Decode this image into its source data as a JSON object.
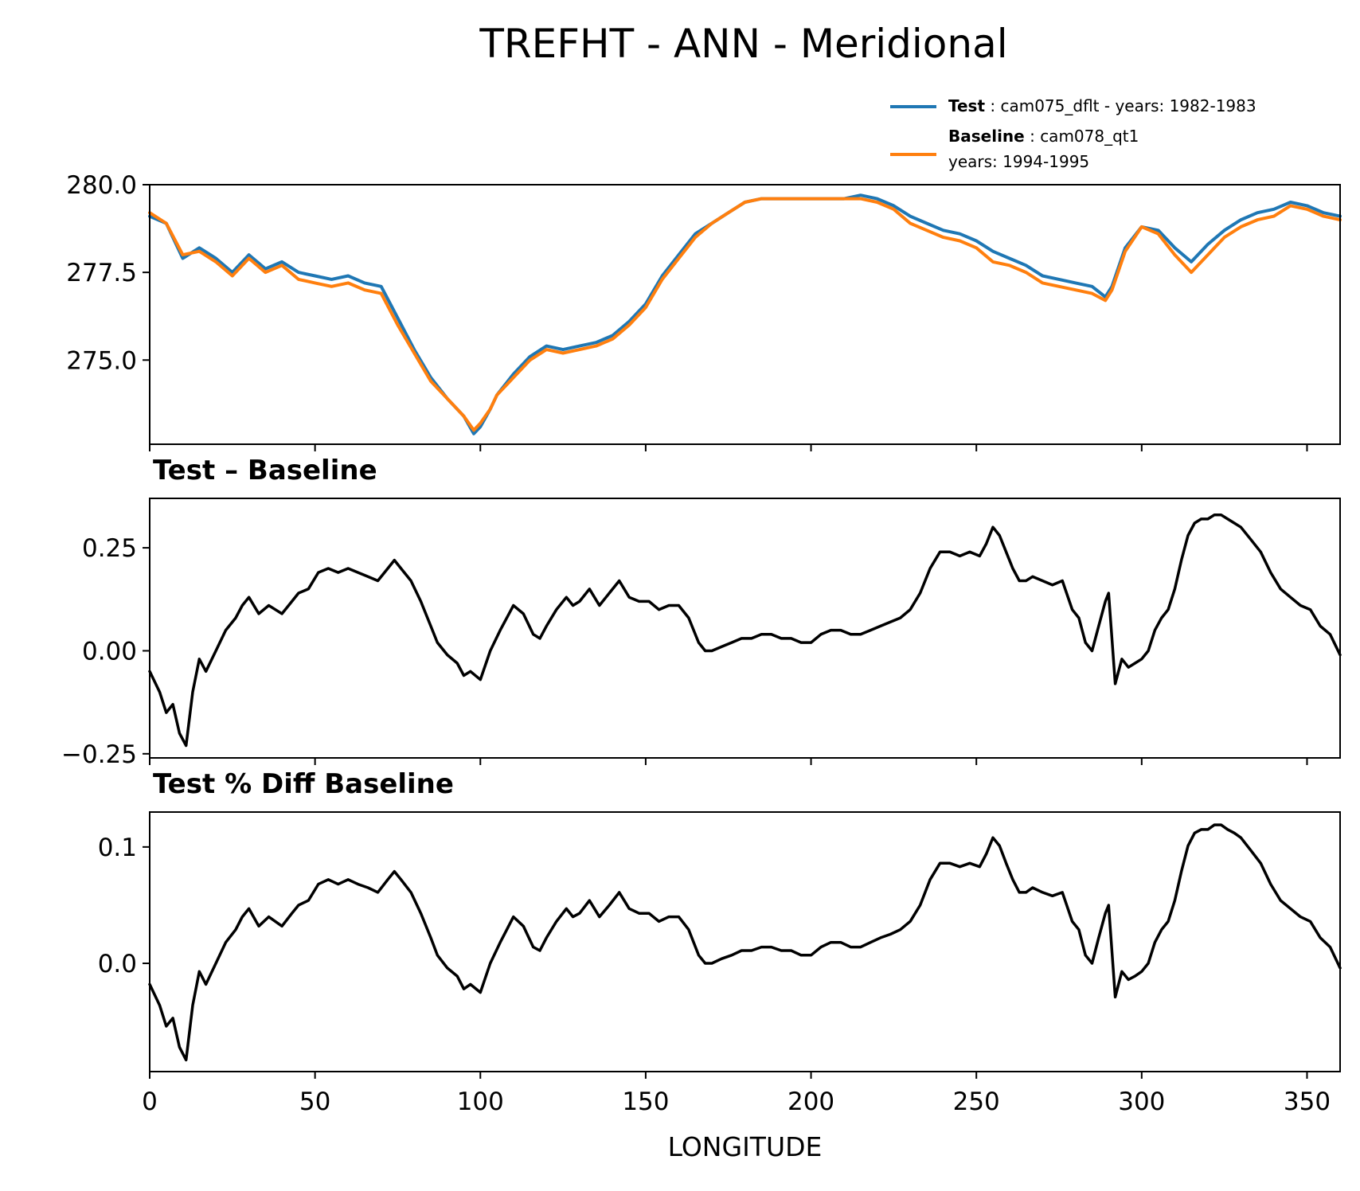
{
  "figure_title": "TREFHT - ANN - Meridional",
  "chart_data": [
    {
      "type": "line",
      "panel": "top",
      "title": "",
      "xlabel": "",
      "ylabel": "",
      "xlim": [
        0,
        360
      ],
      "ylim": [
        272.6,
        280.0
      ],
      "yticks": [
        275.0,
        277.5,
        280.0
      ],
      "ytick_labels": [
        "275.0",
        "277.5",
        "280.0"
      ],
      "xticks": [
        0,
        50,
        100,
        150,
        200,
        250,
        300,
        350
      ],
      "legend": {
        "placement": "top-right",
        "entries": [
          {
            "series": 0,
            "bold": "Test",
            "lines": [
              ": cam075_dflt - years: 1982-1983"
            ]
          },
          {
            "series": 1,
            "bold": "Baseline",
            "lines": [
              ": cam078_qt1",
              "years: 1994-1995"
            ]
          }
        ]
      },
      "x": [
        0,
        5,
        10,
        15,
        20,
        25,
        30,
        35,
        40,
        45,
        50,
        55,
        60,
        65,
        70,
        75,
        80,
        85,
        90,
        95,
        98,
        100,
        103,
        105,
        110,
        115,
        120,
        125,
        130,
        135,
        140,
        145,
        150,
        155,
        160,
        165,
        170,
        175,
        180,
        185,
        190,
        195,
        200,
        205,
        210,
        215,
        220,
        225,
        230,
        235,
        240,
        245,
        250,
        255,
        260,
        265,
        270,
        275,
        280,
        285,
        289,
        291,
        295,
        300,
        305,
        310,
        315,
        320,
        325,
        330,
        335,
        340,
        345,
        350,
        355,
        360
      ],
      "series": [
        {
          "name": "Test",
          "color": "#1f77b4",
          "values": [
            279.1,
            278.9,
            277.9,
            278.2,
            277.9,
            277.5,
            278.0,
            277.6,
            277.8,
            277.5,
            277.4,
            277.3,
            277.4,
            277.2,
            277.1,
            276.2,
            275.3,
            274.5,
            273.9,
            273.4,
            272.9,
            273.1,
            273.6,
            274.0,
            274.6,
            275.1,
            275.4,
            275.3,
            275.4,
            275.5,
            275.7,
            276.1,
            276.6,
            277.4,
            278.0,
            278.6,
            278.9,
            279.2,
            279.5,
            279.6,
            279.6,
            279.6,
            279.6,
            279.6,
            279.6,
            279.7,
            279.6,
            279.4,
            279.1,
            278.9,
            278.7,
            278.6,
            278.4,
            278.1,
            277.9,
            277.7,
            277.4,
            277.3,
            277.2,
            277.1,
            276.8,
            277.1,
            278.2,
            278.8,
            278.7,
            278.2,
            277.8,
            278.3,
            278.7,
            279.0,
            279.2,
            279.3,
            279.5,
            279.4,
            279.2,
            279.1
          ]
        },
        {
          "name": "Baseline",
          "color": "#ff7f0e",
          "values": [
            279.2,
            278.9,
            278.0,
            278.1,
            277.8,
            277.4,
            277.9,
            277.5,
            277.7,
            277.3,
            277.2,
            277.1,
            277.2,
            277.0,
            276.9,
            276.0,
            275.2,
            274.4,
            273.9,
            273.4,
            273.0,
            273.2,
            273.6,
            274.0,
            274.5,
            275.0,
            275.3,
            275.2,
            275.3,
            275.4,
            275.6,
            276.0,
            276.5,
            277.3,
            277.9,
            278.5,
            278.9,
            279.2,
            279.5,
            279.6,
            279.6,
            279.6,
            279.6,
            279.6,
            279.6,
            279.6,
            279.5,
            279.3,
            278.9,
            278.7,
            278.5,
            278.4,
            278.2,
            277.8,
            277.7,
            277.5,
            277.2,
            277.1,
            277.0,
            276.9,
            276.7,
            277.0,
            278.1,
            278.8,
            278.6,
            278.0,
            277.5,
            278.0,
            278.5,
            278.8,
            279.0,
            279.1,
            279.4,
            279.3,
            279.1,
            279.0
          ]
        }
      ]
    },
    {
      "type": "line",
      "panel": "middle",
      "title": "Test – Baseline",
      "xlabel": "",
      "ylabel": "",
      "xlim": [
        0,
        360
      ],
      "ylim": [
        -0.26,
        0.37
      ],
      "yticks": [
        -0.25,
        0.0,
        0.25
      ],
      "ytick_labels": [
        "−0.25",
        "0.00",
        "0.25"
      ],
      "xticks": [
        0,
        50,
        100,
        150,
        200,
        250,
        300,
        350
      ],
      "x": [
        0,
        3,
        5,
        7,
        9,
        11,
        13,
        15,
        17,
        20,
        23,
        26,
        28,
        30,
        33,
        36,
        38,
        40,
        43,
        45,
        48,
        51,
        54,
        57,
        60,
        63,
        66,
        69,
        72,
        74,
        76,
        79,
        82,
        85,
        87,
        90,
        93,
        95,
        97,
        100,
        103,
        106,
        108,
        110,
        113,
        116,
        118,
        120,
        123,
        126,
        128,
        130,
        133,
        136,
        139,
        142,
        145,
        148,
        151,
        154,
        157,
        160,
        163,
        166,
        168,
        170,
        173,
        176,
        179,
        182,
        185,
        188,
        191,
        194,
        197,
        200,
        203,
        206,
        209,
        212,
        215,
        218,
        221,
        224,
        227,
        230,
        233,
        236,
        239,
        242,
        245,
        248,
        251,
        253,
        255,
        257,
        259,
        261,
        263,
        265,
        267,
        270,
        273,
        276,
        279,
        281,
        283,
        285,
        287,
        289,
        290,
        292,
        294,
        296,
        298,
        300,
        302,
        304,
        306,
        308,
        310,
        312,
        314,
        316,
        318,
        320,
        322,
        324,
        326,
        328,
        330,
        333,
        336,
        339,
        342,
        345,
        348,
        351,
        354,
        357,
        360
      ],
      "series": [
        {
          "name": "",
          "color": "#000000",
          "values": [
            -0.05,
            -0.1,
            -0.15,
            -0.13,
            -0.2,
            -0.23,
            -0.1,
            -0.02,
            -0.05,
            0.0,
            0.05,
            0.08,
            0.11,
            0.13,
            0.09,
            0.11,
            0.1,
            0.09,
            0.12,
            0.14,
            0.15,
            0.19,
            0.2,
            0.19,
            0.2,
            0.19,
            0.18,
            0.17,
            0.2,
            0.22,
            0.2,
            0.17,
            0.12,
            0.06,
            0.02,
            -0.01,
            -0.03,
            -0.06,
            -0.05,
            -0.07,
            0.0,
            0.05,
            0.08,
            0.11,
            0.09,
            0.04,
            0.03,
            0.06,
            0.1,
            0.13,
            0.11,
            0.12,
            0.15,
            0.11,
            0.14,
            0.17,
            0.13,
            0.12,
            0.12,
            0.1,
            0.11,
            0.11,
            0.08,
            0.02,
            0.0,
            0.0,
            0.01,
            0.02,
            0.03,
            0.03,
            0.04,
            0.04,
            0.03,
            0.03,
            0.02,
            0.02,
            0.04,
            0.05,
            0.05,
            0.04,
            0.04,
            0.05,
            0.06,
            0.07,
            0.08,
            0.1,
            0.14,
            0.2,
            0.24,
            0.24,
            0.23,
            0.24,
            0.23,
            0.26,
            0.3,
            0.28,
            0.24,
            0.2,
            0.17,
            0.17,
            0.18,
            0.17,
            0.16,
            0.17,
            0.1,
            0.08,
            0.02,
            0.0,
            0.06,
            0.12,
            0.14,
            -0.08,
            -0.02,
            -0.04,
            -0.03,
            -0.02,
            0.0,
            0.05,
            0.08,
            0.1,
            0.15,
            0.22,
            0.28,
            0.31,
            0.32,
            0.32,
            0.33,
            0.33,
            0.32,
            0.31,
            0.3,
            0.27,
            0.24,
            0.19,
            0.15,
            0.13,
            0.11,
            0.1,
            0.06,
            0.04,
            -0.01
          ]
        }
      ]
    },
    {
      "type": "line",
      "panel": "bottom",
      "title": "Test % Diff Baseline",
      "xlabel": "LONGITUDE",
      "ylabel": "",
      "xlim": [
        0,
        360
      ],
      "ylim": [
        -0.093,
        0.13
      ],
      "yticks": [
        0.0,
        0.1
      ],
      "ytick_labels": [
        "0.0",
        "0.1"
      ],
      "xticks": [
        0,
        50,
        100,
        150,
        200,
        250,
        300,
        350
      ],
      "xtick_labels": [
        "0",
        "50",
        "100",
        "150",
        "200",
        "250",
        "300",
        "350"
      ],
      "x": [
        0,
        3,
        5,
        7,
        9,
        11,
        13,
        15,
        17,
        20,
        23,
        26,
        28,
        30,
        33,
        36,
        38,
        40,
        43,
        45,
        48,
        51,
        54,
        57,
        60,
        63,
        66,
        69,
        72,
        74,
        76,
        79,
        82,
        85,
        87,
        90,
        93,
        95,
        97,
        100,
        103,
        106,
        108,
        110,
        113,
        116,
        118,
        120,
        123,
        126,
        128,
        130,
        133,
        136,
        139,
        142,
        145,
        148,
        151,
        154,
        157,
        160,
        163,
        166,
        168,
        170,
        173,
        176,
        179,
        182,
        185,
        188,
        191,
        194,
        197,
        200,
        203,
        206,
        209,
        212,
        215,
        218,
        221,
        224,
        227,
        230,
        233,
        236,
        239,
        242,
        245,
        248,
        251,
        253,
        255,
        257,
        259,
        261,
        263,
        265,
        267,
        270,
        273,
        276,
        279,
        281,
        283,
        285,
        287,
        289,
        290,
        292,
        294,
        296,
        298,
        300,
        302,
        304,
        306,
        308,
        310,
        312,
        314,
        316,
        318,
        320,
        322,
        324,
        326,
        328,
        330,
        333,
        336,
        339,
        342,
        345,
        348,
        351,
        354,
        357,
        360
      ],
      "series": [
        {
          "name": "",
          "color": "#000000",
          "values": [
            -0.018,
            -0.036,
            -0.054,
            -0.047,
            -0.072,
            -0.083,
            -0.036,
            -0.007,
            -0.018,
            0.0,
            0.018,
            0.029,
            0.04,
            0.047,
            0.032,
            0.04,
            0.036,
            0.032,
            0.043,
            0.05,
            0.054,
            0.068,
            0.072,
            0.068,
            0.072,
            0.068,
            0.065,
            0.061,
            0.072,
            0.079,
            0.072,
            0.061,
            0.043,
            0.022,
            0.007,
            -0.004,
            -0.011,
            -0.022,
            -0.018,
            -0.025,
            0.0,
            0.018,
            0.029,
            0.04,
            0.032,
            0.014,
            0.011,
            0.022,
            0.036,
            0.047,
            0.04,
            0.043,
            0.054,
            0.04,
            0.05,
            0.061,
            0.047,
            0.043,
            0.043,
            0.036,
            0.04,
            0.04,
            0.029,
            0.007,
            0.0,
            0.0,
            0.004,
            0.007,
            0.011,
            0.011,
            0.014,
            0.014,
            0.011,
            0.011,
            0.007,
            0.007,
            0.014,
            0.018,
            0.018,
            0.014,
            0.014,
            0.018,
            0.022,
            0.025,
            0.029,
            0.036,
            0.05,
            0.072,
            0.086,
            0.086,
            0.083,
            0.086,
            0.083,
            0.094,
            0.108,
            0.101,
            0.086,
            0.072,
            0.061,
            0.061,
            0.065,
            0.061,
            0.058,
            0.061,
            0.036,
            0.029,
            0.007,
            0.0,
            0.022,
            0.043,
            0.05,
            -0.029,
            -0.007,
            -0.014,
            -0.011,
            -0.007,
            0.0,
            0.018,
            0.029,
            0.036,
            0.054,
            0.079,
            0.101,
            0.112,
            0.115,
            0.115,
            0.119,
            0.119,
            0.115,
            0.112,
            0.108,
            0.097,
            0.086,
            0.068,
            0.054,
            0.047,
            0.04,
            0.036,
            0.022,
            0.014,
            -0.004
          ]
        }
      ]
    }
  ]
}
